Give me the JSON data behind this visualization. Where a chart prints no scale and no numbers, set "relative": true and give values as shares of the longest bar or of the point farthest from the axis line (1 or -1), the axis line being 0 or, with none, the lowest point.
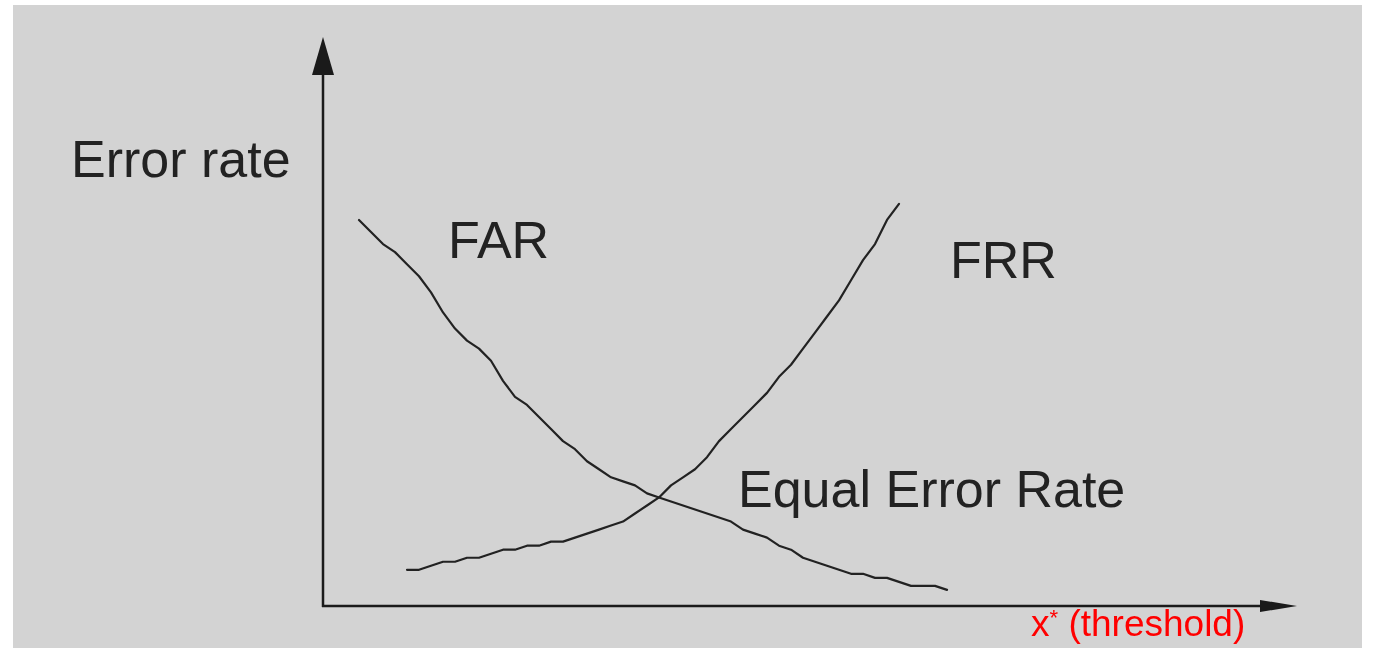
{
  "chart_data": {
    "type": "line",
    "relative": true,
    "ylabel": "Error rate",
    "xlabel": "x$^{*}$ (threshold)",
    "annotations": [
      "Equal Error Rate"
    ],
    "tick_labels": false,
    "marker": "none",
    "line_style": "solid",
    "categories": [
      null,
      null,
      null,
      null,
      null,
      null,
      null,
      null,
      null,
      null,
      null,
      null,
      null,
      null,
      null,
      null,
      null,
      null,
      null,
      null,
      null,
      null,
      null,
      null,
      null,
      null,
      null,
      null,
      null,
      null,
      null,
      null,
      null,
      null,
      null,
      null,
      null,
      null,
      null,
      null,
      null,
      null,
      null,
      null,
      null,
      null,
      null,
      null,
      null,
      null,
      null,
      null,
      null,
      null,
      null,
      null,
      null,
      null,
      null,
      null,
      null,
      null,
      null,
      null,
      null,
      null,
      null,
      null,
      null,
      null,
      null,
      null,
      null,
      null,
      null,
      null,
      null,
      null,
      null,
      null,
      null
    ],
    "series": [
      {
        "name": "FAR",
        "color": "#222222",
        "values": [
          null,
          null,
          null,
          0.96,
          0.93,
          0.9,
          0.88,
          0.85,
          0.82,
          0.78,
          0.73,
          0.69,
          0.66,
          0.64,
          0.61,
          0.56,
          0.52,
          0.5,
          0.47,
          0.44,
          0.41,
          0.39,
          0.36,
          0.34,
          0.32,
          0.31,
          0.3,
          0.28,
          0.27,
          0.26,
          0.25,
          0.24,
          0.23,
          0.22,
          0.21,
          0.19,
          0.18,
          0.17,
          0.15,
          0.14,
          0.12,
          0.11,
          0.1,
          0.09,
          0.08,
          0.08,
          0.07,
          0.07,
          0.06,
          0.05,
          0.05,
          0.05,
          0.04,
          null,
          null,
          null,
          null,
          null,
          null,
          null,
          null,
          null,
          null,
          null,
          null,
          null,
          null,
          null,
          null,
          null,
          null,
          null,
          null,
          null,
          null,
          null,
          null,
          null,
          null,
          null,
          null
        ]
      },
      {
        "name": "FRR",
        "color": "#222222",
        "values": [
          null,
          null,
          null,
          null,
          null,
          null,
          null,
          0.09,
          0.09,
          0.1,
          0.11,
          0.11,
          0.12,
          0.12,
          0.13,
          0.14,
          0.14,
          0.15,
          0.15,
          0.16,
          0.16,
          0.17,
          0.18,
          0.19,
          0.2,
          0.21,
          0.23,
          0.25,
          0.27,
          0.3,
          0.32,
          0.34,
          0.37,
          0.41,
          0.44,
          0.47,
          0.5,
          0.53,
          0.57,
          0.6,
          0.64,
          0.68,
          0.72,
          0.76,
          0.81,
          0.86,
          0.9,
          0.96,
          1.0,
          null,
          null,
          null,
          null,
          null,
          null,
          null,
          null,
          null,
          null,
          null,
          null,
          null,
          null,
          null,
          null,
          null,
          null,
          null,
          null,
          null,
          null,
          null,
          null,
          null,
          null,
          null,
          null,
          null,
          null,
          null,
          null
        ]
      }
    ]
  }
}
